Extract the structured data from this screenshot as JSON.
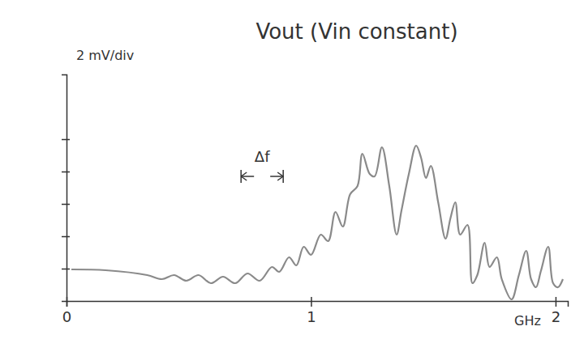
{
  "chart_data": {
    "type": "line",
    "title": "Vout (Vin constant)",
    "x_label": "GHz",
    "y_label": "2 mV/div",
    "x": [
      0.02,
      0.16,
      0.33,
      0.39,
      0.44,
      0.49,
      0.54,
      0.59,
      0.64,
      0.69,
      0.74,
      0.79,
      0.84,
      0.87,
      0.91,
      0.94,
      0.97,
      1.0,
      1.04,
      1.07,
      1.1,
      1.13,
      1.16,
      1.19,
      1.21,
      1.24,
      1.26,
      1.29,
      1.32,
      1.35,
      1.37,
      1.4,
      1.43,
      1.45,
      1.47,
      1.49,
      1.52,
      1.55,
      1.57,
      1.59,
      1.61,
      1.64,
      1.66,
      1.68,
      1.71,
      1.73,
      1.76,
      1.78,
      1.82,
      1.85,
      1.88,
      1.9,
      1.92,
      1.94,
      1.97,
      1.99,
      2.01,
      2.03
    ],
    "values": [
      1.95,
      1.9,
      1.6,
      1.35,
      1.6,
      1.25,
      1.6,
      1.1,
      1.5,
      1.1,
      1.7,
      1.25,
      2.1,
      1.8,
      2.7,
      2.2,
      3.35,
      2.85,
      4.1,
      3.7,
      5.5,
      4.6,
      6.6,
      7.1,
      9.1,
      7.85,
      7.7,
      9.5,
      7.1,
      4.1,
      5.6,
      7.85,
      9.6,
      8.85,
      7.6,
      8.35,
      6.1,
      3.85,
      5.1,
      6.1,
      4.1,
      4.7,
      1.1,
      1.6,
      3.6,
      2.1,
      2.7,
      1.35,
      0.1,
      1.6,
      3.1,
      1.35,
      0.85,
      1.85,
      3.35,
      1.1,
      0.85,
      1.35
    ],
    "color": "#8a8a8a",
    "xlim": [
      0,
      2.05
    ],
    "xticks": [
      0,
      1,
      2
    ],
    "ylim": [
      0,
      14
    ],
    "yticks": [
      2,
      4,
      6,
      8,
      10
    ],
    "tick_labels": "x",
    "grid": false,
    "annotations": [
      {
        "text": "Δf",
        "x": 0.8,
        "y": 8.6
      }
    ]
  }
}
